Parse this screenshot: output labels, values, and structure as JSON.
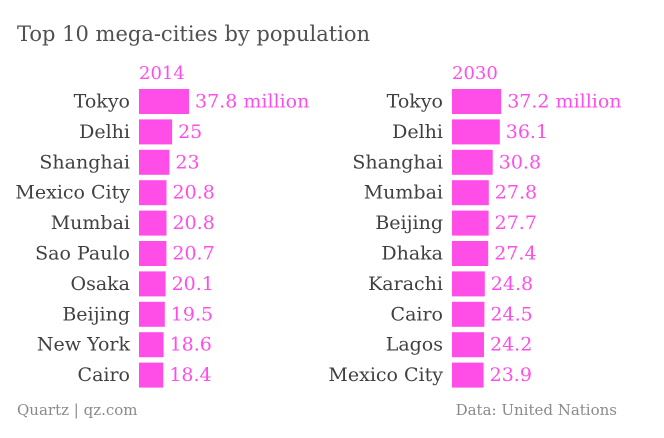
{
  "title": "Top 10 mega-cities by population",
  "footer": {
    "source_left": "Quartz | qz.com",
    "source_right": "Data: United Nations"
  },
  "colors": {
    "bar": "#ff4de8",
    "value_text": "#ff4de8",
    "label_text": "#404040"
  },
  "chart_data": [
    {
      "type": "bar",
      "orientation": "horizontal",
      "header": "2014",
      "categories": [
        "Tokyo",
        "Delhi",
        "Shanghai",
        "Mexico City",
        "Mumbai",
        "Sao Paulo",
        "Osaka",
        "Beijing",
        "New York",
        "Cairo"
      ],
      "values": [
        37.8,
        25,
        23,
        20.8,
        20.8,
        20.7,
        20.1,
        19.5,
        18.6,
        18.4
      ],
      "value_labels": [
        "37.8 million",
        "25",
        "23",
        "20.8",
        "20.8",
        "20.7",
        "20.1",
        "19.5",
        "18.6",
        "18.4"
      ],
      "xlim": [
        0,
        37.8
      ]
    },
    {
      "type": "bar",
      "orientation": "horizontal",
      "header": "2030",
      "categories": [
        "Tokyo",
        "Delhi",
        "Shanghai",
        "Mumbai",
        "Beijing",
        "Dhaka",
        "Karachi",
        "Cairo",
        "Lagos",
        "Mexico City"
      ],
      "values": [
        37.2,
        36.1,
        30.8,
        27.8,
        27.7,
        27.4,
        24.8,
        24.5,
        24.2,
        23.9
      ],
      "value_labels": [
        "37.2 million",
        "36.1",
        "30.8",
        "27.8",
        "27.7",
        "27.4",
        "24.8",
        "24.5",
        "24.2",
        "23.9"
      ],
      "xlim": [
        0,
        37.8
      ]
    }
  ]
}
